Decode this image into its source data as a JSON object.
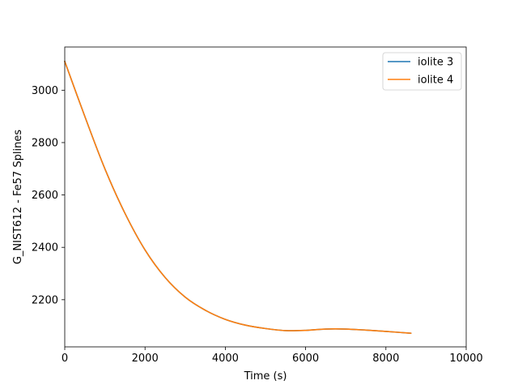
{
  "chart_data": {
    "type": "line",
    "title": "",
    "xlabel": "Time (s)",
    "ylabel": "G_NIST612 - Fe57 Splines",
    "xlim": [
      0,
      10000
    ],
    "ylim": [
      2020,
      3165
    ],
    "xticks": [
      0,
      2000,
      4000,
      6000,
      8000,
      10000
    ],
    "yticks": [
      2200,
      2400,
      2600,
      2800,
      3000
    ],
    "grid": false,
    "legend_position": "top-right",
    "series": [
      {
        "name": "iolite 3",
        "color": "#1f77b4",
        "x": [
          0,
          500,
          1000,
          1500,
          2000,
          2500,
          3000,
          3500,
          4000,
          4500,
          5000,
          5500,
          6000,
          6500,
          7000,
          7500,
          8000,
          8620
        ],
        "y": [
          3110,
          2900,
          2700,
          2530,
          2390,
          2285,
          2210,
          2160,
          2125,
          2103,
          2090,
          2082,
          2083,
          2088,
          2088,
          2084,
          2079,
          2072
        ]
      },
      {
        "name": "iolite 4",
        "color": "#ff7f0e",
        "x": [
          0,
          500,
          1000,
          1500,
          2000,
          2500,
          3000,
          3500,
          4000,
          4500,
          5000,
          5500,
          6000,
          6500,
          7000,
          7500,
          8000,
          8620
        ],
        "y": [
          3110,
          2900,
          2700,
          2530,
          2390,
          2285,
          2210,
          2160,
          2125,
          2103,
          2090,
          2082,
          2083,
          2088,
          2088,
          2084,
          2079,
          2072
        ]
      }
    ]
  }
}
